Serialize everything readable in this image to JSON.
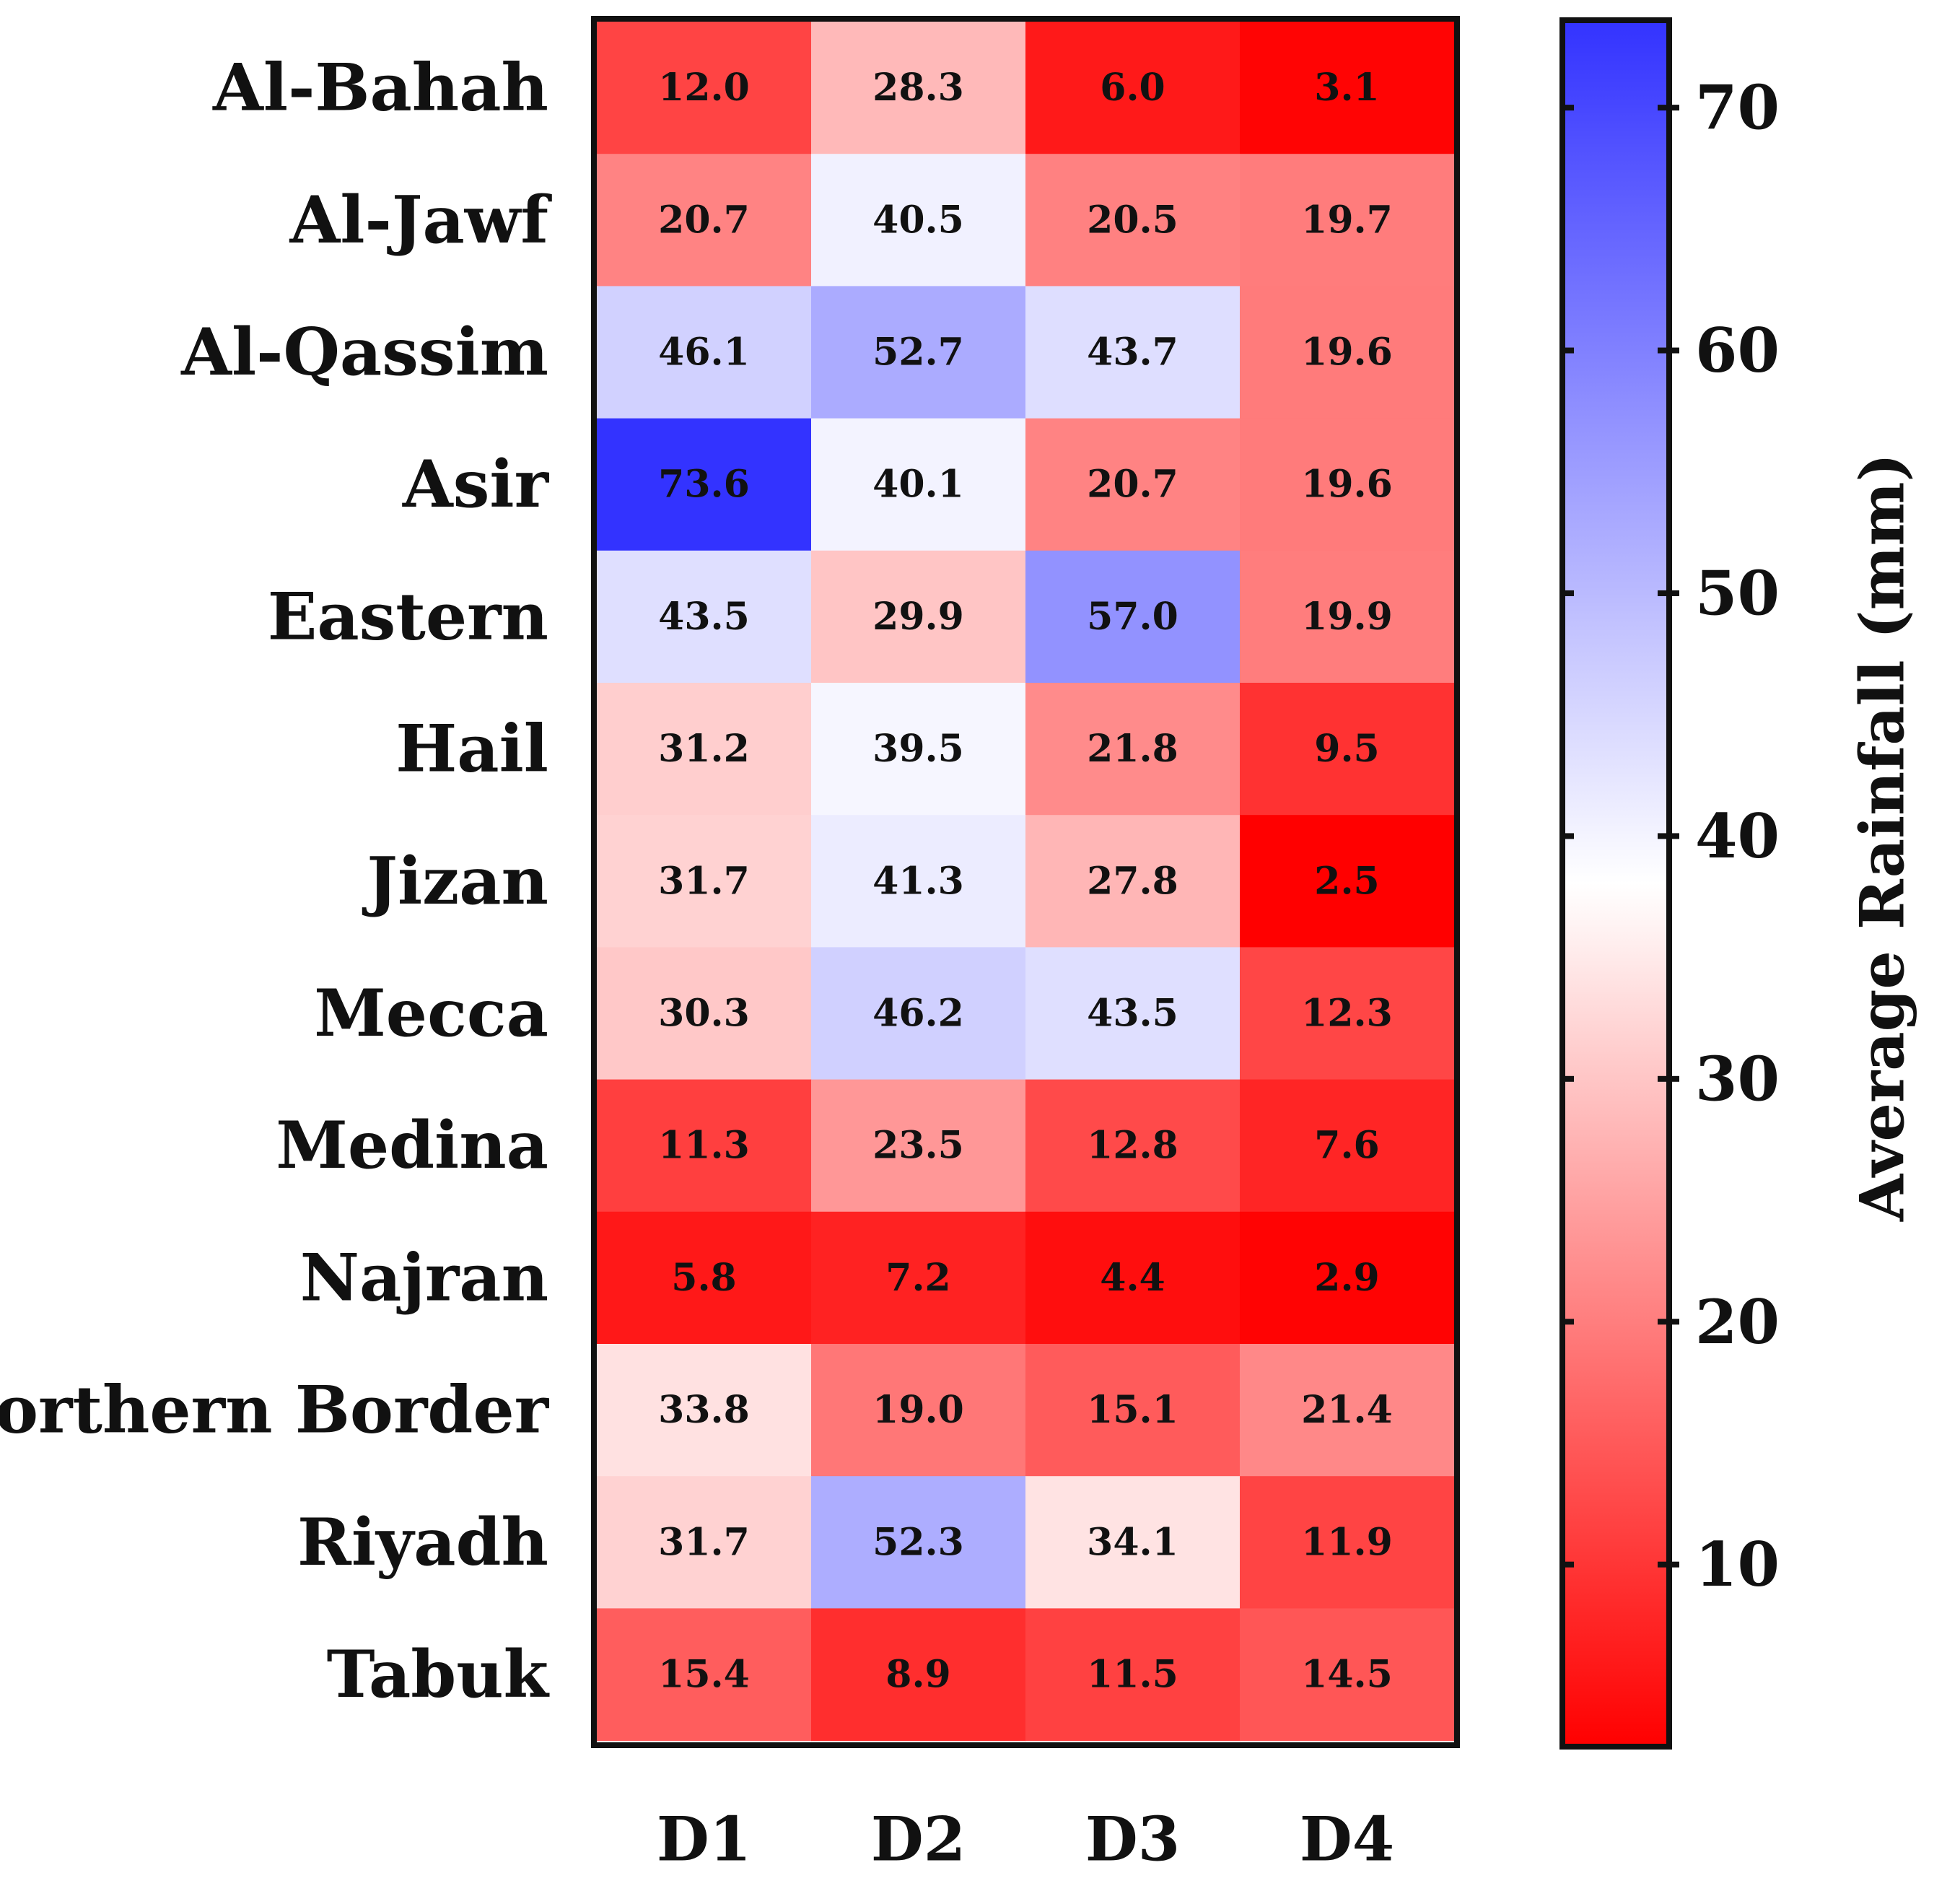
{
  "chart_data": {
    "type": "heatmap",
    "title": "",
    "rows": [
      "Al-Bahah",
      "Al-Jawf",
      "Al-Qassim",
      "Asir",
      "Eastern",
      "Hail",
      "Jizan",
      "Mecca",
      "Medina",
      "Najran",
      "Northern Border",
      "Riyadh",
      "Tabuk"
    ],
    "columns": [
      "D1",
      "D2",
      "D3",
      "D4"
    ],
    "values": [
      [
        12.0,
        28.3,
        6.0,
        3.1
      ],
      [
        20.7,
        40.5,
        20.5,
        19.7
      ],
      [
        46.1,
        52.7,
        43.7,
        19.6
      ],
      [
        73.6,
        40.1,
        20.7,
        19.6
      ],
      [
        43.5,
        29.9,
        57.0,
        19.9
      ],
      [
        31.2,
        39.5,
        21.8,
        9.5
      ],
      [
        31.7,
        41.3,
        27.8,
        2.5
      ],
      [
        30.3,
        46.2,
        43.5,
        12.3
      ],
      [
        11.3,
        23.5,
        12.8,
        7.6
      ],
      [
        5.8,
        7.2,
        4.4,
        2.9
      ],
      [
        33.8,
        19.0,
        15.1,
        21.4
      ],
      [
        31.7,
        52.3,
        34.1,
        11.9
      ],
      [
        15.4,
        8.9,
        11.5,
        14.5
      ]
    ],
    "colorbar": {
      "label": "Average Rainfall (mm)",
      "ticks": [
        10,
        20,
        30,
        40,
        50,
        60,
        70
      ],
      "range": [
        2.5,
        73.6
      ],
      "colors": {
        "low": "#ff0000",
        "mid": "#ffffff",
        "high": "#3333ff"
      },
      "midpoint": 38
    }
  }
}
